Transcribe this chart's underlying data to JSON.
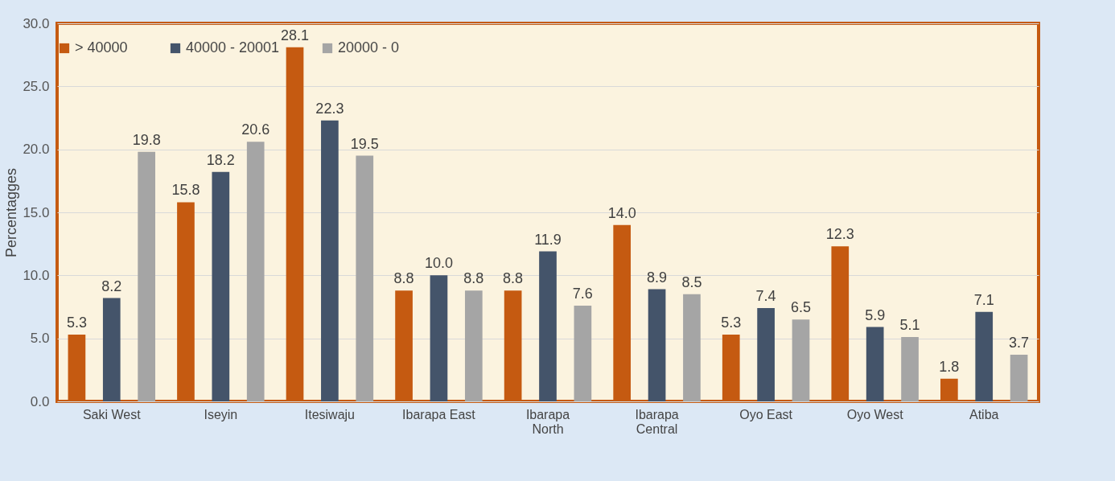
{
  "chart_data": {
    "type": "bar",
    "ylabel": "Percentagges",
    "categories": [
      "Saki West",
      "Iseyin",
      "Itesiwaju",
      "Ibarapa East",
      "Ibarapa North",
      "Ibarapa Central",
      "Oyo East",
      "Oyo West",
      "Atiba"
    ],
    "series": [
      {
        "name": "> 40000",
        "color": "#c55a11",
        "values": [
          5.3,
          15.8,
          28.1,
          8.8,
          8.8,
          14.0,
          5.3,
          12.3,
          1.8
        ],
        "value_labels": [
          "5.3",
          "15.8",
          "28.1",
          "8.8",
          "8.8",
          "14.0",
          "5.3",
          "12.3",
          "1.8"
        ]
      },
      {
        "name": "40000 - 20001",
        "color": "#44546a",
        "values": [
          8.2,
          18.2,
          22.3,
          10.0,
          11.9,
          8.9,
          7.4,
          5.9,
          7.1
        ],
        "value_labels": [
          "8.2",
          "18.2",
          "22.3",
          "10.0",
          "11.9",
          "8.9",
          "7.4",
          "5.9",
          "7.1"
        ]
      },
      {
        "name": "20000 - 0",
        "color": "#a5a5a5",
        "values": [
          19.8,
          20.6,
          19.5,
          8.8,
          7.6,
          8.5,
          6.5,
          5.1,
          3.7
        ],
        "value_labels": [
          "19.8",
          "20.6",
          "19.5",
          "8.8",
          "7.6",
          "8.5",
          "6.5",
          "5.1",
          "3.7"
        ]
      }
    ],
    "ylim": [
      0,
      30
    ],
    "yticks": [
      {
        "value": 0,
        "label": "0.0"
      },
      {
        "value": 5,
        "label": "5.0"
      },
      {
        "value": 10,
        "label": "10.0"
      },
      {
        "value": 15,
        "label": "15.0"
      },
      {
        "value": 20,
        "label": "20.0"
      },
      {
        "value": 25,
        "label": "25.0"
      },
      {
        "value": 30,
        "label": "30.0"
      }
    ],
    "grid": "y",
    "legend": "top"
  }
}
